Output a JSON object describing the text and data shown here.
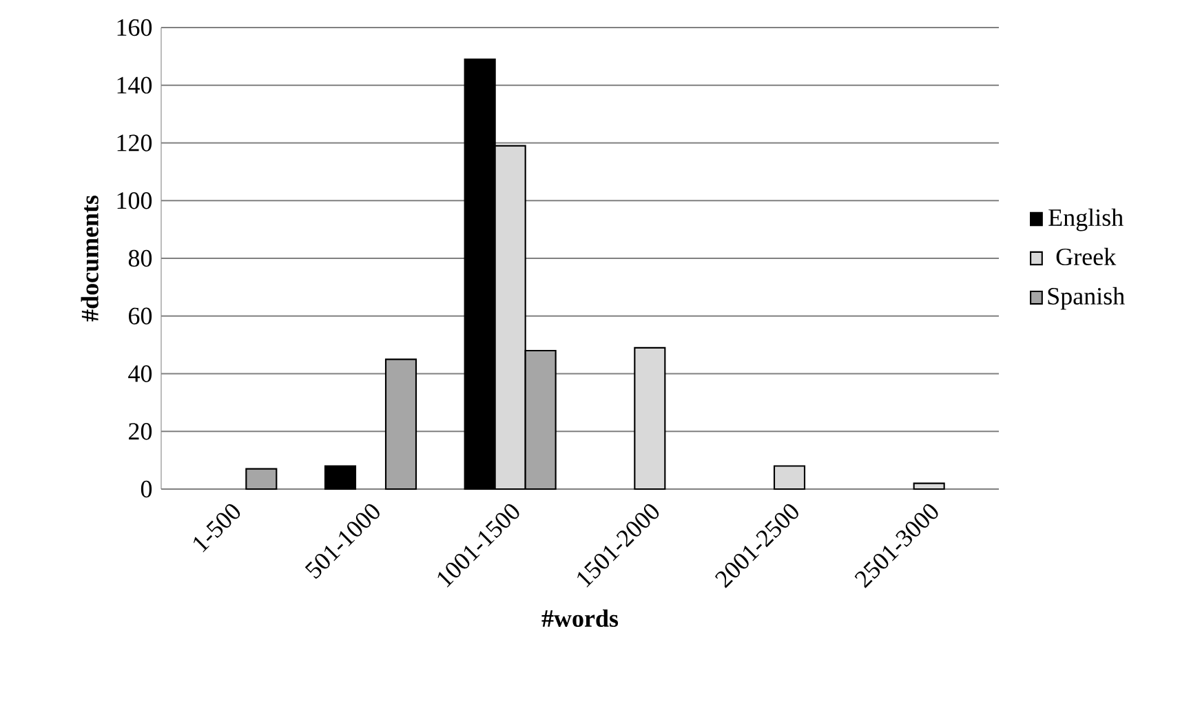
{
  "chart_data": {
    "type": "bar",
    "xlabel": "#words",
    "ylabel": "#documents",
    "categories": [
      "1-500",
      "501-1000",
      "1001-1500",
      "1501-2000",
      "2001-2500",
      "2501-3000"
    ],
    "series": [
      {
        "name": "English",
        "color": "#000000",
        "values": [
          null,
          8,
          149,
          null,
          null,
          null
        ]
      },
      {
        "name": "Greek",
        "color": "#d9d9d9",
        "values": [
          null,
          null,
          119,
          49,
          8,
          2
        ]
      },
      {
        "name": "Spanish",
        "color": "#a6a6a6",
        "values": [
          7,
          45,
          48,
          null,
          null,
          null
        ]
      }
    ],
    "ylim": [
      0,
      160
    ],
    "yticks": [
      0,
      20,
      40,
      60,
      80,
      100,
      120,
      140,
      160
    ],
    "grid": "y",
    "legend": "right"
  }
}
